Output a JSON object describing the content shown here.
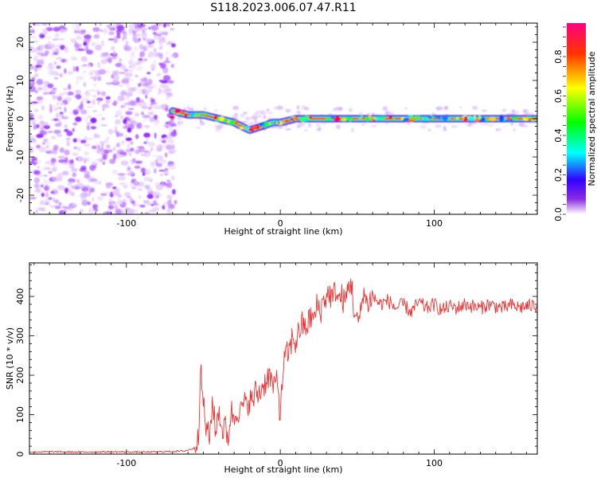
{
  "title": "S118.2023.006.07.47.R11",
  "chart_data": [
    {
      "type": "heatmap",
      "xlabel": "Height of straight line (km)",
      "ylabel": "Frequency (Hz)",
      "xlim": [
        -163,
        167
      ],
      "ylim": [
        -25,
        25
      ],
      "xticks": [
        -100,
        0,
        100
      ],
      "yticks": [
        -20,
        -10,
        0,
        10,
        20
      ],
      "colorbar": {
        "label": "Normalized spectral amplitude",
        "range": [
          0,
          0.97
        ],
        "ticks": [
          0.0,
          0.2,
          0.4,
          0.6,
          0.8
        ],
        "colormap": "rainbow",
        "colors": [
          "#ffffff",
          "#7f00ff",
          "#0000ff",
          "#00ffff",
          "#00ff00",
          "#ffff00",
          "#ff0000",
          "#ff0080"
        ]
      },
      "noise_region": {
        "x": [
          -163,
          -68
        ],
        "y": [
          -25,
          25
        ],
        "amplitude": [
          0.02,
          0.12
        ]
      },
      "ridge": [
        {
          "x": -70,
          "y": 2
        },
        {
          "x": -60,
          "y": 1
        },
        {
          "x": -50,
          "y": 1
        },
        {
          "x": -40,
          "y": 0
        },
        {
          "x": -30,
          "y": -1
        },
        {
          "x": -20,
          "y": -3
        },
        {
          "x": -12,
          "y": -2
        },
        {
          "x": -5,
          "y": -1
        },
        {
          "x": 0,
          "y": -1
        },
        {
          "x": 10,
          "y": 0
        },
        {
          "x": 20,
          "y": 0
        },
        {
          "x": 30,
          "y": 0
        },
        {
          "x": 40,
          "y": 0
        },
        {
          "x": 50,
          "y": 0
        },
        {
          "x": 60,
          "y": 0
        },
        {
          "x": 70,
          "y": 0
        },
        {
          "x": 80,
          "y": 0
        },
        {
          "x": 90,
          "y": 0
        },
        {
          "x": 100,
          "y": 0
        },
        {
          "x": 110,
          "y": 0
        },
        {
          "x": 120,
          "y": 0
        },
        {
          "x": 130,
          "y": 0
        },
        {
          "x": 140,
          "y": 0
        },
        {
          "x": 150,
          "y": 0
        },
        {
          "x": 160,
          "y": 0
        },
        {
          "x": 167,
          "y": 0
        }
      ],
      "grid": false
    },
    {
      "type": "line",
      "xlabel": "Height of straight line (km)",
      "ylabel": "SNR (10 * v/v)",
      "xlim": [
        -163,
        167
      ],
      "ylim": [
        0,
        485
      ],
      "xticks": [
        -100,
        0,
        100
      ],
      "yticks": [
        0,
        100,
        200,
        300,
        400
      ],
      "color": "#ee3333",
      "series": [
        {
          "x": [
            -163,
            -150,
            -130,
            -110,
            -90,
            -75,
            -62,
            -56,
            -53,
            -52,
            -50,
            -48,
            -46,
            -44,
            -42,
            -40,
            -38,
            -36,
            -34,
            -32,
            -30,
            -28,
            -26,
            -24,
            -22,
            -20,
            -18,
            -16,
            -14,
            -12,
            -10,
            -8,
            -6,
            -4,
            -2,
            0,
            2,
            4,
            6,
            8,
            10,
            12,
            14,
            16,
            18,
            20,
            22,
            24,
            26,
            28,
            30,
            32,
            34,
            36,
            38,
            40,
            42,
            44,
            46,
            48,
            50,
            52,
            54,
            56,
            58,
            60,
            65,
            70,
            75,
            80,
            85,
            90,
            95,
            100,
            105,
            110,
            115,
            120,
            125,
            130,
            135,
            140,
            145,
            150,
            155,
            160,
            167
          ],
          "y": [
            5,
            6,
            5,
            6,
            5,
            6,
            8,
            15,
            60,
            220,
            130,
            60,
            40,
            140,
            50,
            120,
            60,
            70,
            40,
            110,
            90,
            120,
            100,
            130,
            120,
            140,
            130,
            160,
            150,
            170,
            180,
            200,
            190,
            160,
            200,
            90,
            230,
            250,
            260,
            300,
            280,
            310,
            330,
            320,
            330,
            350,
            340,
            380,
            360,
            390,
            400,
            410,
            390,
            420,
            390,
            400,
            380,
            420,
            440,
            360,
            330,
            350,
            420,
            380,
            390,
            400,
            380,
            390,
            370,
            380,
            360,
            385,
            370,
            380,
            365,
            375,
            370,
            380,
            375,
            370,
            380,
            375,
            370,
            378,
            372,
            375,
            378
          ]
        }
      ],
      "grid": false
    }
  ]
}
